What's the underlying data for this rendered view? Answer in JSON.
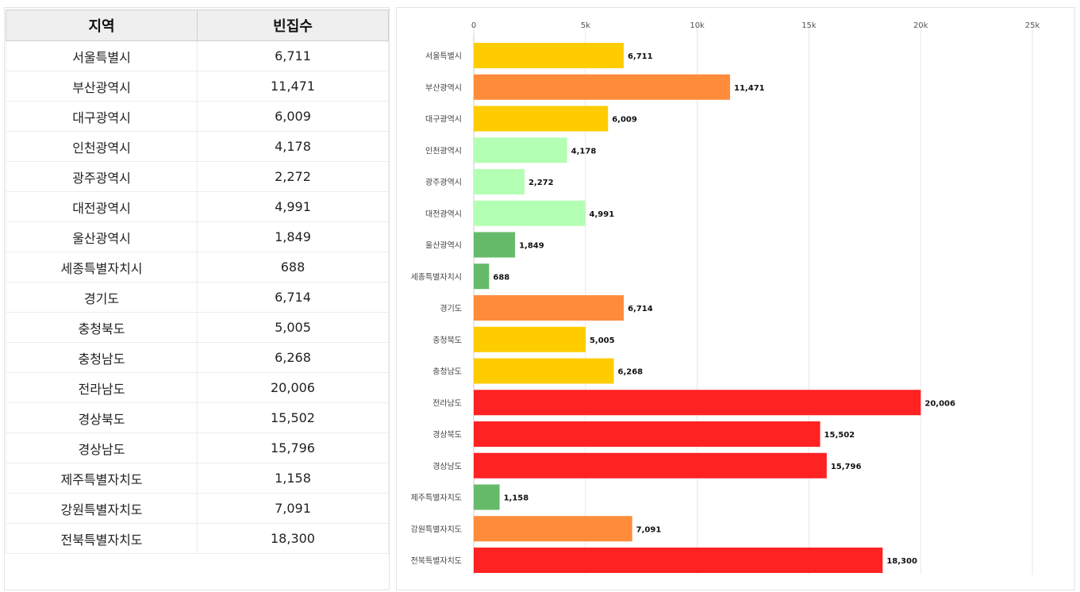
{
  "table": {
    "headers": [
      "지역",
      "빈집수"
    ],
    "rows": [
      [
        "서울특별시",
        "6,711"
      ],
      [
        "부산광역시",
        "11,471"
      ],
      [
        "대구광역시",
        "6,009"
      ],
      [
        "인천광역시",
        "4,178"
      ],
      [
        "광주광역시",
        "2,272"
      ],
      [
        "대전광역시",
        "4,991"
      ],
      [
        "울산광역시",
        "1,849"
      ],
      [
        "세종특별자치시",
        "688"
      ],
      [
        "경기도",
        "6,714"
      ],
      [
        "충청북도",
        "5,005"
      ],
      [
        "충청남도",
        "6,268"
      ],
      [
        "전라남도",
        "20,006"
      ],
      [
        "경상북도",
        "15,502"
      ],
      [
        "경상남도",
        "15,796"
      ],
      [
        "제주특별자치도",
        "1,158"
      ],
      [
        "강원특별자치도",
        "7,091"
      ],
      [
        "전북특별자치도",
        "18,300"
      ]
    ]
  },
  "chart_data": {
    "type": "bar",
    "orientation": "horizontal",
    "title": "",
    "xlabel": "",
    "ylabel": "",
    "xlim": [
      0,
      25000
    ],
    "x_ticks": [
      0,
      5000,
      10000,
      15000,
      20000,
      25000
    ],
    "x_tick_labels": [
      "0",
      "5k",
      "10k",
      "15k",
      "20k",
      "25k"
    ],
    "axis_position": "top",
    "grid": true,
    "categories": [
      "서울특별시",
      "부산광역시",
      "대구광역시",
      "인천광역시",
      "광주광역시",
      "대전광역시",
      "울산광역시",
      "세종특별자치시",
      "경기도",
      "충청북도",
      "충청남도",
      "전라남도",
      "경상북도",
      "경상남도",
      "제주특별자치도",
      "강원특별자치도",
      "전북특별자치도"
    ],
    "values": [
      6711,
      11471,
      6009,
      4178,
      2272,
      4991,
      1849,
      688,
      6714,
      5005,
      6268,
      20006,
      15502,
      15796,
      1158,
      7091,
      18300
    ],
    "value_labels": [
      "6,711",
      "11,471",
      "6,009",
      "4,178",
      "2,272",
      "4,991",
      "1,849",
      "688",
      "6,714",
      "5,005",
      "6,268",
      "20,006",
      "15,502",
      "15,796",
      "1,158",
      "7,091",
      "18,300"
    ],
    "colors": [
      "#ffcc00",
      "#ff8c3a",
      "#ffcc00",
      "#b3ffb3",
      "#b3ffb3",
      "#b3ffb3",
      "#66bb6a",
      "#66bb6a",
      "#ff8c3a",
      "#ffcc00",
      "#ffcc00",
      "#ff2222",
      "#ff2222",
      "#ff2222",
      "#66bb6a",
      "#ff8c3a",
      "#ff2222"
    ]
  }
}
